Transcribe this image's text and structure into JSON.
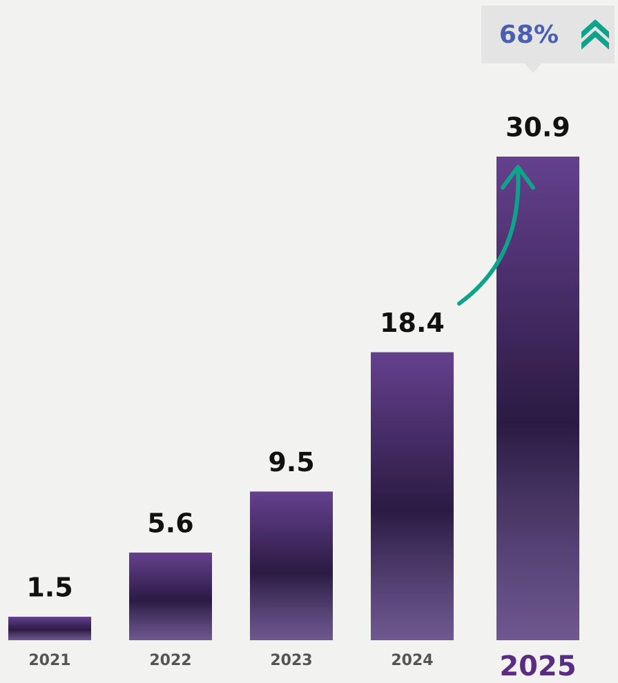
{
  "chart_data": {
    "type": "bar",
    "categories": [
      "2021",
      "2022",
      "2023",
      "2024",
      "2025"
    ],
    "values": [
      1.5,
      5.6,
      9.5,
      18.4,
      30.9
    ],
    "color": "#4a2f6e",
    "annotation": "68%",
    "annotation_color": "#0fa38c"
  }
}
